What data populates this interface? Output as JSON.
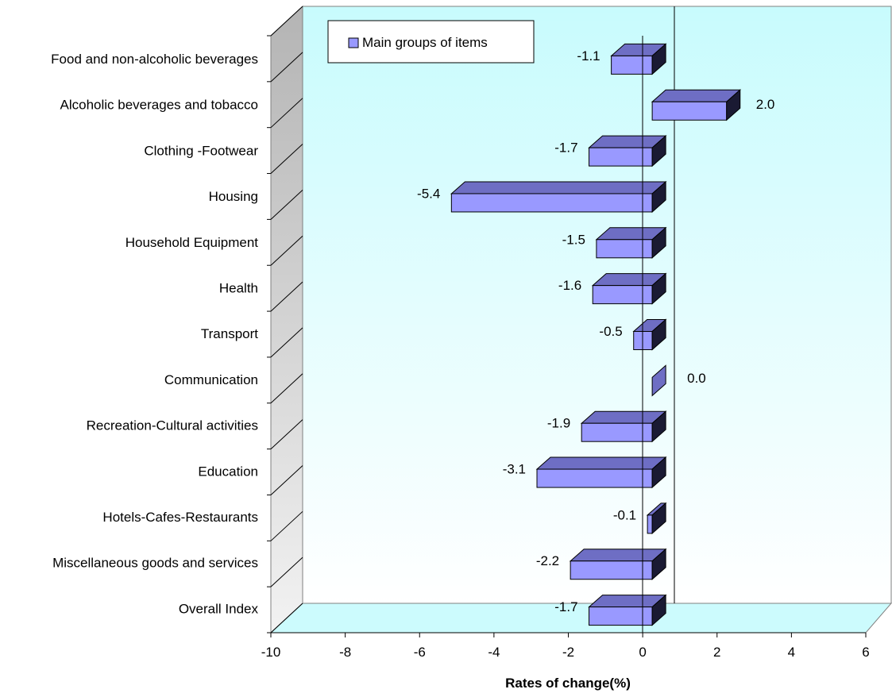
{
  "chart_data": {
    "type": "bar",
    "orientation": "horizontal",
    "three_d": true,
    "categories": [
      "Food and non-alcoholic beverages",
      "Alcoholic beverages and tobacco",
      "Clothing -Footwear",
      "Housing",
      "Household Equipment",
      "Health",
      "Transport",
      "Communication",
      "Recreation-Cultural activities",
      "Education",
      "Hotels-Cafes-Restaurants",
      "Miscellaneous goods and services",
      "Overall Index"
    ],
    "series": [
      {
        "name": "Main groups of items",
        "values": [
          -1.1,
          2.0,
          -1.7,
          -5.4,
          -1.5,
          -1.6,
          -0.5,
          0.0,
          -1.9,
          -3.1,
          -0.1,
          -2.2,
          -1.7
        ],
        "labels": [
          "-1.1",
          "2.0",
          "-1.7",
          "-5.4",
          "-1.5",
          "-1.6",
          "-0.5",
          "0.0",
          "-1.9",
          "-3.1",
          "-0.1",
          "-2.2",
          "-1.7"
        ]
      }
    ],
    "xlabel": "Rates of change(%)",
    "xlim": [
      -10,
      6
    ],
    "xticks": [
      "-10",
      "-8",
      "-6",
      "-4",
      "-2",
      "0",
      "2",
      "4",
      "6"
    ],
    "legend": "top-left",
    "colors": {
      "bar_front": "#9999ff",
      "bar_top": "#6e6ec4",
      "bar_side": "#1a1a33",
      "back_wall_top": "#c8fbfd",
      "back_wall_bottom": "#ffffff",
      "side_wall_top": "#b4b4b4",
      "side_wall_bottom": "#f2f2f2",
      "floor": "#ccfbfd"
    }
  }
}
